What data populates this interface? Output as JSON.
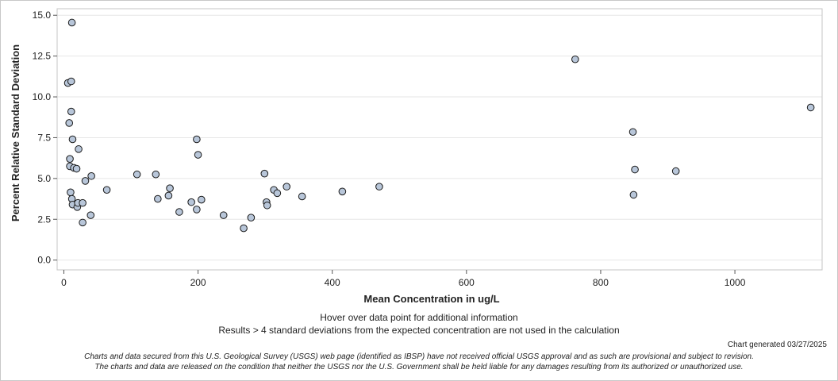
{
  "chart_data": {
    "type": "scatter",
    "title": "",
    "xlabel": "Mean Concentration in ug/L",
    "ylabel": "Percent Relative Standard Deviation",
    "xlim": [
      -10,
      1130
    ],
    "ylim": [
      -0.6,
      15.4
    ],
    "xticks": [
      0,
      200,
      400,
      600,
      800,
      1000
    ],
    "yticks": [
      0.0,
      2.5,
      5.0,
      7.5,
      10.0,
      12.5,
      15.0
    ],
    "xtick_labels": [
      "0",
      "200",
      "400",
      "600",
      "800",
      "1000"
    ],
    "ytick_labels": [
      "0.0",
      "2.5",
      "5.0",
      "7.5",
      "10.0",
      "12.5",
      "15.0"
    ],
    "grid": true,
    "marker_fill": "#b8c6d9",
    "marker_stroke": "#1a1a1a",
    "points": [
      {
        "x": 12,
        "y": 14.55
      },
      {
        "x": 6,
        "y": 10.85
      },
      {
        "x": 11,
        "y": 10.95
      },
      {
        "x": 11,
        "y": 9.1
      },
      {
        "x": 8,
        "y": 8.4
      },
      {
        "x": 13,
        "y": 7.4
      },
      {
        "x": 22,
        "y": 6.8
      },
      {
        "x": 9,
        "y": 6.2
      },
      {
        "x": 9,
        "y": 5.75
      },
      {
        "x": 15,
        "y": 5.65
      },
      {
        "x": 19,
        "y": 5.6
      },
      {
        "x": 41,
        "y": 5.15
      },
      {
        "x": 32,
        "y": 4.85
      },
      {
        "x": 64,
        "y": 4.3
      },
      {
        "x": 10,
        "y": 4.15
      },
      {
        "x": 12,
        "y": 3.75
      },
      {
        "x": 13,
        "y": 3.4
      },
      {
        "x": 20,
        "y": 3.25
      },
      {
        "x": 21,
        "y": 3.5
      },
      {
        "x": 28,
        "y": 3.5
      },
      {
        "x": 40,
        "y": 2.75
      },
      {
        "x": 28,
        "y": 2.3
      },
      {
        "x": 109,
        "y": 5.25
      },
      {
        "x": 137,
        "y": 5.25
      },
      {
        "x": 140,
        "y": 3.75
      },
      {
        "x": 158,
        "y": 4.4
      },
      {
        "x": 156,
        "y": 3.95
      },
      {
        "x": 172,
        "y": 2.95
      },
      {
        "x": 190,
        "y": 3.55
      },
      {
        "x": 198,
        "y": 7.4
      },
      {
        "x": 200,
        "y": 6.45
      },
      {
        "x": 205,
        "y": 3.7
      },
      {
        "x": 198,
        "y": 3.1
      },
      {
        "x": 238,
        "y": 2.75
      },
      {
        "x": 268,
        "y": 1.95
      },
      {
        "x": 279,
        "y": 2.6
      },
      {
        "x": 299,
        "y": 5.3
      },
      {
        "x": 302,
        "y": 3.55
      },
      {
        "x": 303,
        "y": 3.35
      },
      {
        "x": 313,
        "y": 4.3
      },
      {
        "x": 318,
        "y": 4.1
      },
      {
        "x": 332,
        "y": 4.5
      },
      {
        "x": 355,
        "y": 3.9
      },
      {
        "x": 415,
        "y": 4.2
      },
      {
        "x": 470,
        "y": 4.5
      },
      {
        "x": 762,
        "y": 12.3
      },
      {
        "x": 848,
        "y": 7.85
      },
      {
        "x": 851,
        "y": 5.55
      },
      {
        "x": 849,
        "y": 4.0
      },
      {
        "x": 912,
        "y": 5.45
      },
      {
        "x": 1113,
        "y": 9.35
      }
    ]
  },
  "notes": {
    "hover": "Hover over data point for additional information",
    "exclusion": "Results > 4 standard deviations from the expected concentration are not used in the calculation",
    "generated": "Chart generated 03/27/2025",
    "disclaimer1": "Charts and data secured from this U.S. Geological Survey (USGS) web page (identified as IBSP) have not received official USGS approval and as such are provisional and subject to revision.",
    "disclaimer2": "The charts and data are released on the condition that neither the USGS nor the U.S. Government shall be held liable for any damages resulting from its authorized or unauthorized use."
  }
}
